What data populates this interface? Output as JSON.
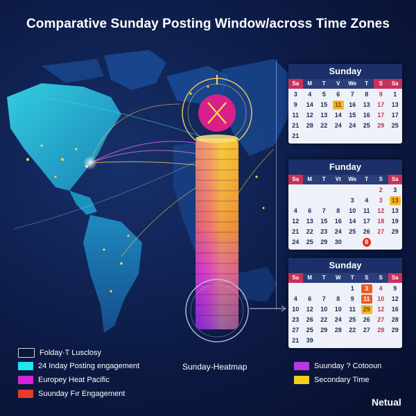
{
  "title": "Comparative Sunday Posting Window/across Time Zones",
  "calendars": [
    {
      "title": "Sunday",
      "days": [
        "Sa",
        "M",
        "T",
        "V",
        "We",
        "T",
        "S",
        "Sa"
      ],
      "rows": [
        [
          "3",
          "4",
          "5",
          "6",
          "7",
          "8",
          "9",
          "1"
        ],
        [
          "9",
          "14",
          "15",
          "11",
          "16",
          "13",
          "17",
          "13"
        ],
        [
          "11",
          "12",
          "13",
          "14",
          "15",
          "16",
          "17",
          "17"
        ],
        [
          "21",
          "28",
          "22",
          "24",
          "24",
          "25",
          "29",
          "25"
        ],
        [
          "21",
          "",
          "",
          "",
          "",
          "",
          "",
          ""
        ]
      ]
    },
    {
      "title": "Funday",
      "days": [
        "Sa",
        "M",
        "T",
        "Vt",
        "We",
        "T",
        "S",
        "Sa"
      ],
      "rows": [
        [
          "",
          "",
          "",
          "",
          "",
          "",
          "2",
          "3"
        ],
        [
          "",
          "",
          "",
          "",
          "3",
          "4",
          "3",
          "13"
        ],
        [
          "4",
          "6",
          "7",
          "8",
          "10",
          "11",
          "12",
          "13"
        ],
        [
          "12",
          "13",
          "15",
          "16",
          "14",
          "17",
          "18",
          "19"
        ],
        [
          "21",
          "22",
          "23",
          "24",
          "25",
          "26",
          "27",
          "29"
        ],
        [
          "24",
          "25",
          "29",
          "30",
          "",
          "8",
          "",
          ""
        ]
      ]
    },
    {
      "title": "Sunday",
      "days": [
        "Sa",
        "M",
        "T",
        "W",
        "T",
        "S",
        "S",
        "Sa"
      ],
      "rows": [
        [
          "",
          "",
          "",
          "",
          "1",
          "3",
          "4",
          "9"
        ],
        [
          "4",
          "6",
          "7",
          "8",
          "9",
          "11",
          "10",
          "12"
        ],
        [
          "10",
          "12",
          "10",
          "10",
          "11",
          "29",
          "12",
          "16"
        ],
        [
          "23",
          "26",
          "22",
          "24",
          "25",
          "26",
          "27",
          "28"
        ],
        [
          "27",
          "25",
          "29",
          "28",
          "22",
          "27",
          "28",
          "29"
        ],
        [
          "21",
          "39",
          "",
          "",
          "",
          "",
          "",
          ""
        ]
      ]
    }
  ],
  "legend": {
    "items": [
      {
        "label": "Folday·T Lusclosy",
        "color": "#0b1536"
      },
      {
        "label": "24 Inday Posting engagement",
        "color": "#22e6f0"
      },
      {
        "label": "Europey Heat Pacific",
        "color": "#d623d8"
      },
      {
        "label": "Suunday Fır Engagement",
        "color": "#e83a2a"
      }
    ],
    "right_items": [
      {
        "label": "Suunday ? Cotooun",
        "color": "#b53be0"
      },
      {
        "label": "Secondary Time",
        "color": "#f4cc1c"
      }
    ]
  },
  "heatmap_label": "Sunday-Heatmap",
  "brand": "Netual",
  "colors": {
    "accent_cyan": "#22e6f0",
    "accent_magenta": "#e021c8",
    "accent_yellow": "#f6c521",
    "calendar_header": "#1c2f68"
  }
}
